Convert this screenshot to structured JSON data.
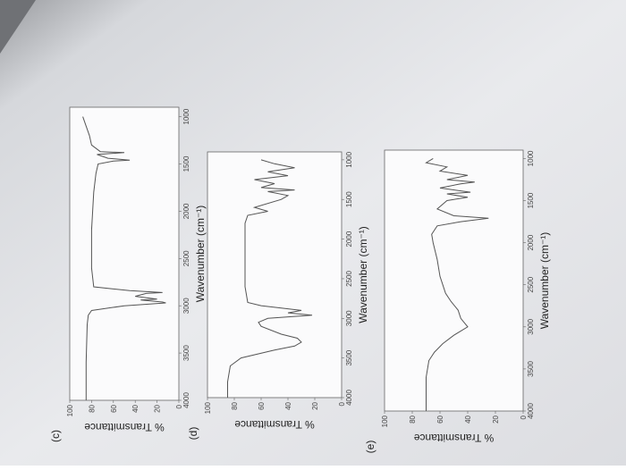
{
  "chart_data": [
    {
      "type": "line",
      "label": "(c)",
      "x_label": "Wavenumber (cm⁻¹)",
      "y_label": "% Transmittance",
      "x": [
        4000,
        3600,
        3200,
        3100,
        3050,
        3000,
        2970,
        2960,
        2940,
        2930,
        2900,
        2870,
        2860,
        2840,
        2800,
        2600,
        2200,
        2000,
        1800,
        1600,
        1500,
        1470,
        1460,
        1440,
        1400,
        1380,
        1370,
        1300,
        1200,
        1100,
        1000
      ],
      "series": [
        {
          "color": "#555555",
          "values": [
            85,
            85,
            84,
            83,
            80,
            50,
            12,
            15,
            35,
            20,
            40,
            30,
            15,
            45,
            78,
            80,
            80,
            79,
            78,
            76,
            74,
            60,
            45,
            65,
            75,
            50,
            72,
            80,
            82,
            85,
            88
          ]
        }
      ],
      "xlim": [
        4000,
        900
      ],
      "ylim": [
        0,
        100
      ],
      "xticks": [
        4000,
        3500,
        3000,
        2500,
        2000,
        1500,
        1000
      ],
      "yticks": [
        0,
        20,
        40,
        60,
        80,
        100
      ]
    },
    {
      "type": "line",
      "label": "(d)",
      "x_label": "Wavenumber (cm⁻¹)",
      "y_label": "% Transmittance",
      "x": [
        4000,
        3800,
        3600,
        3500,
        3400,
        3350,
        3300,
        3250,
        3200,
        3100,
        3050,
        3000,
        2960,
        2930,
        2900,
        2870,
        2840,
        2800,
        2600,
        2400,
        2200,
        2000,
        1800,
        1700,
        1650,
        1600,
        1500,
        1450,
        1400,
        1380,
        1350,
        1300,
        1250,
        1200,
        1150,
        1100,
        1050,
        1000
      ],
      "series": [
        {
          "color": "#555555",
          "values": [
            85,
            85,
            83,
            75,
            50,
            35,
            30,
            33,
            45,
            60,
            62,
            55,
            22,
            40,
            30,
            45,
            60,
            70,
            72,
            72,
            72,
            72,
            72,
            70,
            55,
            65,
            45,
            40,
            55,
            35,
            60,
            50,
            65,
            40,
            55,
            35,
            50,
            60
          ]
        }
      ],
      "xlim": [
        4000,
        900
      ],
      "ylim": [
        0,
        100
      ],
      "xticks": [
        4000,
        3500,
        3000,
        2500,
        2000,
        1500,
        1000
      ],
      "yticks": [
        0,
        20,
        40,
        60,
        80,
        100
      ]
    },
    {
      "type": "line",
      "label": "(e)",
      "x_label": "Wavenumber (cm⁻¹)",
      "y_label": "% Transmittance",
      "x": [
        4000,
        3800,
        3600,
        3400,
        3300,
        3200,
        3100,
        3000,
        2900,
        2800,
        2700,
        2600,
        2500,
        2400,
        2200,
        2000,
        1900,
        1800,
        1750,
        1710,
        1680,
        1600,
        1500,
        1460,
        1420,
        1400,
        1350,
        1300,
        1280,
        1250,
        1200,
        1150,
        1100,
        1050,
        1000
      ],
      "series": [
        {
          "color": "#555555",
          "values": [
            70,
            70,
            70,
            68,
            64,
            58,
            50,
            40,
            45,
            47,
            52,
            56,
            58,
            60,
            62,
            65,
            66,
            62,
            45,
            25,
            50,
            62,
            55,
            40,
            55,
            38,
            60,
            45,
            35,
            55,
            40,
            60,
            55,
            70,
            65
          ]
        }
      ],
      "xlim": [
        4000,
        900
      ],
      "ylim": [
        0,
        100
      ],
      "xticks": [
        4000,
        3500,
        3000,
        2500,
        2000,
        1500,
        1000
      ],
      "yticks": [
        0,
        20,
        40,
        60,
        80,
        100
      ]
    }
  ]
}
